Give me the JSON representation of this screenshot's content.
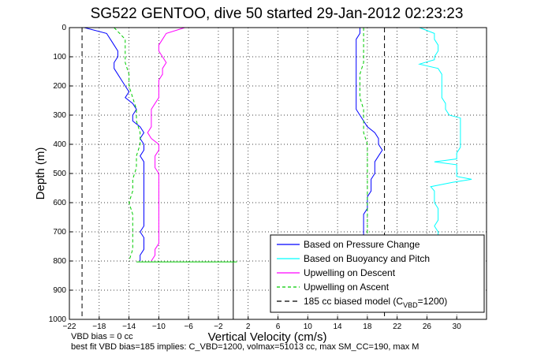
{
  "chart_data": {
    "type": "line",
    "title": "SG522 GENTOO, dive 50 started 29-Jan-2012 02:23:23",
    "xlabel": "Vertical Velocity (cm/s)",
    "ylabel": "Depth (m)",
    "xlim": [
      -22,
      34
    ],
    "ylim": [
      1000,
      0
    ],
    "grid": true,
    "x_ticks": [
      -22,
      -18,
      -14,
      -10,
      -6,
      -2,
      2,
      6,
      10,
      14,
      18,
      22,
      26,
      30
    ],
    "x_tick_labels": [
      "−22",
      "−18",
      "−14",
      "−10",
      "−6",
      "−2",
      "2",
      "6",
      "10",
      "14",
      "18",
      "22",
      "26",
      "30"
    ],
    "y_ticks": [
      0,
      100,
      200,
      300,
      400,
      500,
      600,
      700,
      800,
      900,
      1000
    ],
    "y_tick_labels": [
      "0",
      "100",
      "200",
      "300",
      "400",
      "500",
      "600",
      "700",
      "800",
      "900",
      "1000"
    ],
    "legend_position": "bottom-right",
    "legend": [
      {
        "label": "Based on Pressure Change",
        "color": "#0000ff",
        "style": "solid"
      },
      {
        "label": "Based on Buoyancy and Pitch",
        "color": "#00ffff",
        "style": "solid"
      },
      {
        "label": "Upwelling on Descent",
        "color": "#ff00ff",
        "style": "solid"
      },
      {
        "label": "Upwelling on Ascent",
        "color": "#00cc00",
        "style": "dashed"
      },
      {
        "label_main": "185 cc biased model (C",
        "label_sub": "VBD",
        "label_tail": "=1200)",
        "color": "#000000",
        "style": "dashed"
      }
    ],
    "vertical_lines": [
      {
        "x": -20.3,
        "style": "dashed"
      },
      {
        "x": 0,
        "style": "solid"
      },
      {
        "x": 20.3,
        "style": "dashed"
      }
    ],
    "series": [
      {
        "key": "pressure_descent",
        "color": "#0000ff",
        "dash": false,
        "depth": [
          0,
          20,
          40,
          60,
          80,
          100,
          120,
          140,
          160,
          180,
          200,
          220,
          240,
          260,
          280,
          300,
          320,
          340,
          360,
          380,
          400,
          420,
          440,
          460,
          480,
          500,
          520,
          540,
          560,
          580,
          600,
          620,
          640,
          660,
          680,
          700,
          720,
          740,
          760,
          780,
          800
        ],
        "values": [
          -20,
          -17,
          -16.5,
          -16,
          -15.5,
          -15.5,
          -16,
          -16,
          -15.5,
          -15,
          -14.5,
          -14,
          -14.5,
          -13.5,
          -13,
          -13.5,
          -13.5,
          -12.5,
          -12,
          -12.5,
          -12,
          -12,
          -12.5,
          -12,
          -12,
          -12,
          -12,
          -12,
          -12,
          -12,
          -12,
          -12,
          -12,
          -12,
          -12,
          -12.5,
          -12,
          -12,
          -12,
          -12.5,
          -12.5
        ]
      },
      {
        "key": "bp_descent",
        "color": "#00cc00",
        "dash": true,
        "depth": [
          0,
          40,
          80,
          120,
          160,
          200,
          240,
          280,
          320,
          360,
          400,
          440,
          480,
          520,
          560,
          600,
          640,
          680,
          720,
          760,
          800
        ],
        "values": [
          -16,
          -14.5,
          -14.5,
          -14.5,
          -14,
          -14,
          -13.5,
          -13,
          -13,
          -12.5,
          -12.5,
          -13,
          -13,
          -13.5,
          -13.5,
          -14,
          -13.5,
          -13.5,
          -13.5,
          -13.5,
          -14
        ]
      },
      {
        "key": "upwelling_descent",
        "color": "#ff00ff",
        "dash": false,
        "depth": [
          0,
          20,
          40,
          60,
          80,
          100,
          120,
          140,
          160,
          180,
          200,
          220,
          240,
          260,
          280,
          300,
          320,
          340,
          360,
          380,
          400,
          420,
          440,
          460,
          480,
          500,
          520,
          540,
          560,
          580,
          600,
          620,
          640,
          660,
          680,
          700,
          720,
          740,
          760,
          780,
          800
        ],
        "values": [
          -6.5,
          -9,
          -9.5,
          -10,
          -10,
          -9.5,
          -9,
          -9.5,
          -9.5,
          -10,
          -10,
          -10,
          -10,
          -10.5,
          -11,
          -11,
          -11,
          -11,
          -11.5,
          -11,
          -10,
          -10,
          -10.5,
          -10.5,
          -10.5,
          -10,
          -10,
          -10,
          -10,
          -10,
          -10,
          -10,
          -10,
          -10,
          -10,
          -10,
          -10,
          -10,
          -10.5,
          -10.5,
          -11
        ]
      },
      {
        "key": "pressure_ascent",
        "color": "#0000ff",
        "dash": false,
        "depth": [
          0,
          20,
          40,
          60,
          80,
          100,
          120,
          140,
          160,
          180,
          200,
          220,
          240,
          260,
          280,
          300,
          320,
          340,
          360,
          380,
          400,
          420,
          440,
          460,
          480,
          500,
          520,
          540,
          560,
          580,
          600,
          620,
          640,
          660,
          680,
          700,
          720
        ],
        "values": [
          17,
          17,
          16.5,
          16.5,
          16.5,
          16.5,
          16.5,
          16.5,
          16.5,
          16.5,
          16.5,
          16.5,
          16.5,
          16.5,
          16.5,
          17,
          17.5,
          18,
          19,
          19.5,
          19.5,
          20,
          19.5,
          19,
          19,
          19,
          18.5,
          18.5,
          18.5,
          18,
          18,
          18,
          17.5,
          17.5,
          17.5,
          17.5,
          17.5
        ]
      },
      {
        "key": "bp_ascent",
        "color": "#00cc00",
        "dash": true,
        "depth": [
          0,
          40,
          80,
          120,
          160,
          200,
          240,
          280,
          320,
          360,
          400,
          440,
          480,
          520,
          560,
          600,
          640,
          680,
          720
        ],
        "values": [
          17.5,
          17.5,
          17.5,
          17.5,
          17,
          17,
          17,
          17.5,
          17.5,
          17.5,
          18,
          18,
          18,
          18,
          18,
          18,
          18,
          18,
          18
        ]
      },
      {
        "key": "buoyancy_pitch",
        "color": "#00ffff",
        "dash": false,
        "depth": [
          0,
          20,
          40,
          60,
          80,
          100,
          110,
          125,
          140,
          160,
          180,
          200,
          220,
          240,
          260,
          280,
          300,
          310,
          330,
          350,
          370,
          390,
          410,
          430,
          450,
          460,
          470,
          490,
          510,
          520,
          530,
          545,
          560,
          580,
          600,
          620,
          640,
          660,
          680,
          700,
          720
        ],
        "values": [
          25,
          27,
          27,
          27.5,
          27.5,
          27,
          27,
          25,
          27.5,
          28,
          28,
          28,
          28,
          28,
          28.5,
          28.5,
          29,
          30.5,
          30.5,
          30.5,
          30.5,
          30.5,
          30.5,
          30,
          30,
          27,
          30,
          30,
          30,
          32,
          29.5,
          26.5,
          27,
          27,
          27,
          27.5,
          27.5,
          27.5,
          27,
          27.5,
          27.5
        ]
      },
      {
        "key": "surface_trace",
        "color": "#00cc00",
        "dash": false,
        "depth": [
          0,
          0
        ],
        "values": [
          -21,
          24
        ]
      },
      {
        "key": "bottom_trace",
        "color": "#00cc00",
        "dash": false,
        "depth": [
          803,
          803
        ],
        "values": [
          -13,
          0.5
        ]
      }
    ]
  },
  "annotations": {
    "vbd_bias": "VBD bias = 0 cc",
    "fit_line": "best fit VBD bias=185 implies: C_VBD=1200, volmax=51013 cc, max SM_CC=190, max M"
  }
}
